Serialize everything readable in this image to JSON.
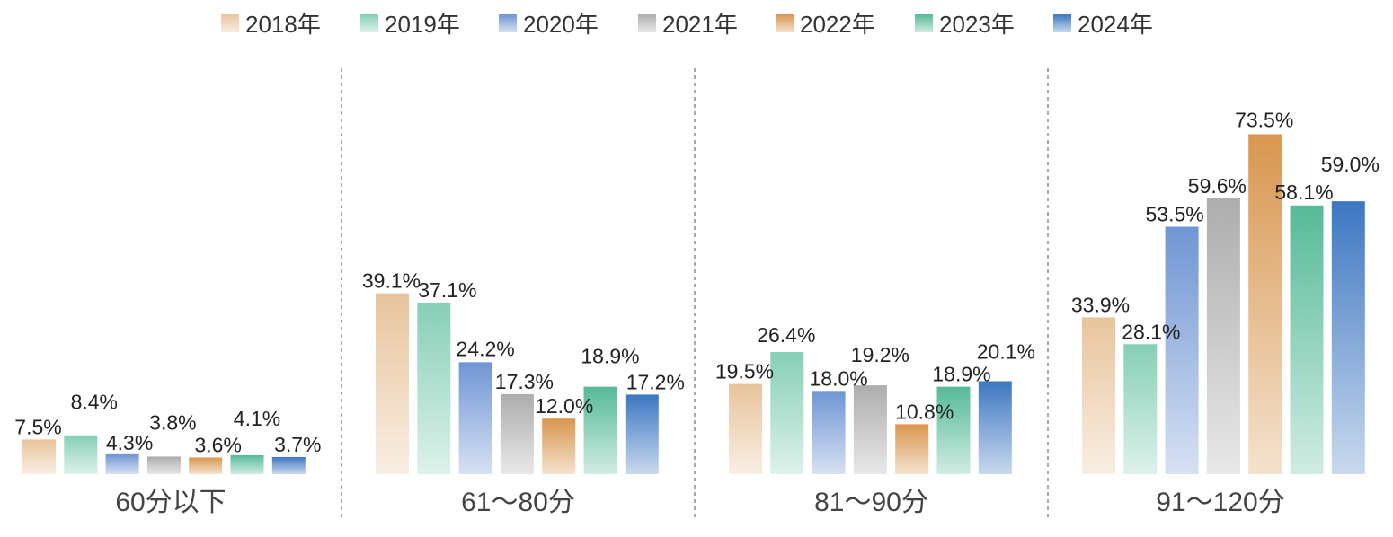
{
  "chart_data": {
    "type": "bar",
    "title": "",
    "xlabel": "",
    "ylabel": "",
    "ylim": [
      0,
      80
    ],
    "grid": false,
    "legend_position": "top-center",
    "categories": [
      "60分以下",
      "61～80分",
      "81～90分",
      "91～120分"
    ],
    "series": [
      {
        "name": "2018年",
        "color": "#e8c49c",
        "values": [
          7.5,
          39.1,
          19.5,
          33.9
        ],
        "labels": [
          "7.5%",
          "39.1%",
          "19.5%",
          "33.9%"
        ]
      },
      {
        "name": "2019年",
        "color": "#86cfb5",
        "values": [
          8.4,
          37.1,
          26.4,
          28.1
        ],
        "labels": [
          "8.4%",
          "37.1%",
          "26.4%",
          "28.1%"
        ]
      },
      {
        "name": "2020年",
        "color": "#6f95d3",
        "values": [
          4.3,
          24.2,
          18.0,
          53.5
        ],
        "labels": [
          "4.3%",
          "24.2%",
          "18.0%",
          "53.5%"
        ]
      },
      {
        "name": "2021年",
        "color": "#adadad",
        "values": [
          3.8,
          17.3,
          19.2,
          59.6
        ],
        "labels": [
          "3.8%",
          "17.3%",
          "19.2%",
          "59.6%"
        ]
      },
      {
        "name": "2022年",
        "color": "#d9964f",
        "values": [
          3.6,
          12.0,
          10.8,
          73.5
        ],
        "labels": [
          "3.6%",
          "12.0%",
          "10.8%",
          "73.5%"
        ]
      },
      {
        "name": "2023年",
        "color": "#56ba99",
        "values": [
          4.1,
          18.9,
          18.9,
          58.1
        ],
        "labels": [
          "4.1%",
          "18.9%",
          "18.9%",
          "58.1%"
        ]
      },
      {
        "name": "2024年",
        "color": "#3d77c2",
        "values": [
          3.7,
          17.2,
          20.1,
          59.0
        ],
        "labels": [
          "3.7%",
          "17.2%",
          "20.1%",
          "59.0%"
        ]
      }
    ]
  }
}
